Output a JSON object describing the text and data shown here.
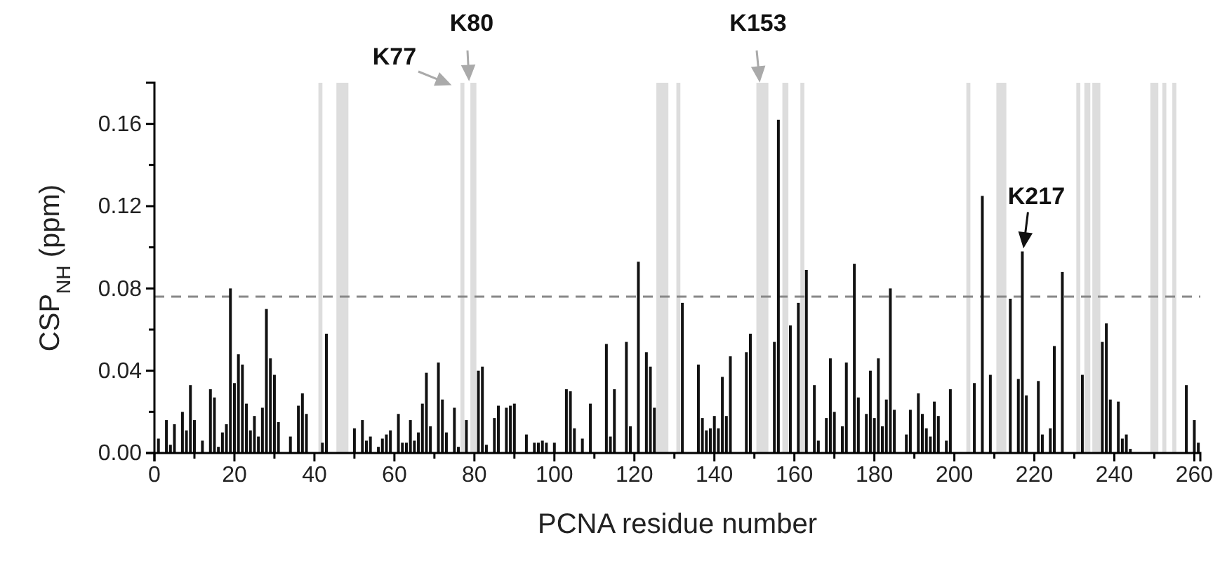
{
  "chart_data": {
    "type": "bar",
    "xlabel": "PCNA residue number",
    "ylabel": "CSP$_{NH}$ (ppm)",
    "x": [
      1,
      3,
      4,
      5,
      7,
      8,
      9,
      10,
      12,
      14,
      15,
      16,
      17,
      18,
      19,
      20,
      21,
      22,
      23,
      24,
      25,
      26,
      27,
      28,
      29,
      30,
      31,
      34,
      36,
      37,
      38,
      42,
      43,
      50,
      52,
      53,
      54,
      56,
      57,
      58,
      59,
      61,
      62,
      63,
      64,
      65,
      66,
      67,
      68,
      69,
      71,
      72,
      73,
      75,
      76,
      78,
      81,
      82,
      83,
      85,
      86,
      88,
      89,
      90,
      93,
      95,
      96,
      97,
      98,
      100,
      103,
      104,
      105,
      107,
      109,
      113,
      114,
      115,
      118,
      119,
      121,
      123,
      124,
      125,
      132,
      136,
      137,
      138,
      139,
      140,
      141,
      142,
      143,
      144,
      148,
      149,
      155,
      156,
      159,
      161,
      163,
      165,
      166,
      168,
      169,
      170,
      172,
      173,
      175,
      176,
      178,
      179,
      180,
      181,
      182,
      183,
      184,
      185,
      188,
      189,
      191,
      192,
      193,
      194,
      195,
      196,
      198,
      199,
      205,
      207,
      209,
      214,
      216,
      217,
      218,
      221,
      222,
      224,
      225,
      227,
      232,
      237,
      238,
      239,
      241,
      242,
      243,
      244,
      258,
      260,
      261
    ],
    "values": [
      0.007,
      0.016,
      0.004,
      0.014,
      0.02,
      0.011,
      0.033,
      0.016,
      0.006,
      0.031,
      0.027,
      0.003,
      0.01,
      0.014,
      0.08,
      0.034,
      0.048,
      0.043,
      0.024,
      0.011,
      0.018,
      0.008,
      0.022,
      0.07,
      0.046,
      0.038,
      0.015,
      0.008,
      0.023,
      0.029,
      0.019,
      0.005,
      0.058,
      0.012,
      0.016,
      0.006,
      0.008,
      0.003,
      0.007,
      0.009,
      0.011,
      0.019,
      0.005,
      0.005,
      0.016,
      0.006,
      0.01,
      0.024,
      0.039,
      0.013,
      0.044,
      0.026,
      0.01,
      0.022,
      0.003,
      0.016,
      0.04,
      0.042,
      0.004,
      0.017,
      0.023,
      0.022,
      0.023,
      0.024,
      0.009,
      0.005,
      0.005,
      0.006,
      0.005,
      0.005,
      0.031,
      0.03,
      0.012,
      0.007,
      0.024,
      0.053,
      0.008,
      0.031,
      0.054,
      0.013,
      0.093,
      0.049,
      0.042,
      0.022,
      0.073,
      0.043,
      0.017,
      0.011,
      0.012,
      0.018,
      0.012,
      0.037,
      0.018,
      0.047,
      0.049,
      0.058,
      0.054,
      0.162,
      0.062,
      0.073,
      0.089,
      0.033,
      0.006,
      0.017,
      0.046,
      0.02,
      0.013,
      0.044,
      0.092,
      0.027,
      0.019,
      0.04,
      0.017,
      0.046,
      0.013,
      0.026,
      0.08,
      0.021,
      0.009,
      0.021,
      0.029,
      0.019,
      0.012,
      0.008,
      0.025,
      0.018,
      0.006,
      0.031,
      0.034,
      0.125,
      0.038,
      0.075,
      0.036,
      0.098,
      0.028,
      0.035,
      0.009,
      0.012,
      0.052,
      0.088,
      0.038,
      0.054,
      0.063,
      0.026,
      0.025,
      0.007,
      0.009,
      0.002,
      0.033,
      0.016,
      0.005
    ],
    "color": "#111111",
    "xlim": [
      0,
      261.5
    ],
    "xticks": [
      0,
      {
        "value": 10,
        "label": null
      },
      20,
      {
        "value": 30,
        "label": null
      },
      40,
      {
        "value": 50,
        "label": null
      },
      60,
      {
        "value": 70,
        "label": null
      },
      80,
      {
        "value": 90,
        "label": null
      },
      100,
      {
        "value": 110,
        "label": null
      },
      120,
      {
        "value": 130,
        "label": null
      },
      140,
      {
        "value": 150,
        "label": null
      },
      160,
      {
        "value": 170,
        "label": null
      },
      180,
      {
        "value": 190,
        "label": null
      },
      200,
      {
        "value": 210,
        "label": null
      },
      220,
      {
        "value": 230,
        "label": null
      },
      240,
      {
        "value": 250,
        "label": null
      },
      260
    ],
    "ylim": [
      0,
      0.18
    ],
    "yticks": [
      {
        "value": 0,
        "label": "0.00"
      },
      {
        "value": 0.02,
        "label": null
      },
      {
        "value": 0.04,
        "label": "0.04"
      },
      {
        "value": 0.06,
        "label": null
      },
      {
        "value": 0.08,
        "label": "0.08"
      },
      {
        "value": 0.1,
        "label": null
      },
      {
        "value": 0.12,
        "label": "0.12"
      },
      {
        "value": 0.14,
        "label": null
      },
      {
        "value": 0.16,
        "label": "0.16"
      }
    ],
    "grid": false,
    "ref_lines": [
      {
        "axis": "y",
        "value": 0.076,
        "color": "#888888",
        "line_style": "dashed"
      }
    ],
    "bands": [
      {
        "axis": "x",
        "from": 41,
        "to": 42,
        "color": "#dddddd"
      },
      {
        "axis": "x",
        "from": 45.5,
        "to": 48.5,
        "color": "#dddddd"
      },
      {
        "axis": "x",
        "from": 76.5,
        "to": 77.5,
        "color": "#dddddd"
      },
      {
        "axis": "x",
        "from": 79,
        "to": 80.5,
        "color": "#dddddd"
      },
      {
        "axis": "x",
        "from": 125.5,
        "to": 128.5,
        "color": "#dddddd"
      },
      {
        "axis": "x",
        "from": 130.5,
        "to": 131.5,
        "color": "#dddddd"
      },
      {
        "axis": "x",
        "from": 150.5,
        "to": 153.5,
        "color": "#dddddd"
      },
      {
        "axis": "x",
        "from": 157,
        "to": 158.5,
        "color": "#dddddd"
      },
      {
        "axis": "x",
        "from": 161.5,
        "to": 162.5,
        "color": "#dddddd"
      },
      {
        "axis": "x",
        "from": 203,
        "to": 204,
        "color": "#dddddd"
      },
      {
        "axis": "x",
        "from": 210.5,
        "to": 213,
        "color": "#dddddd"
      },
      {
        "axis": "x",
        "from": 230.5,
        "to": 231.5,
        "color": "#dddddd"
      },
      {
        "axis": "x",
        "from": 232.5,
        "to": 234,
        "color": "#dddddd"
      },
      {
        "axis": "x",
        "from": 234.5,
        "to": 236.5,
        "color": "#dddddd"
      },
      {
        "axis": "x",
        "from": 249,
        "to": 251,
        "color": "#dddddd"
      },
      {
        "axis": "x",
        "from": 252,
        "to": 253,
        "color": "#dddddd"
      },
      {
        "axis": "x",
        "from": 254.5,
        "to": 255.5,
        "color": "#dddddd"
      }
    ],
    "annotations": [
      "K77",
      "K80",
      "K153",
      {
        "text": "K217",
        "x": 217,
        "y": 0.098
      }
    ]
  }
}
